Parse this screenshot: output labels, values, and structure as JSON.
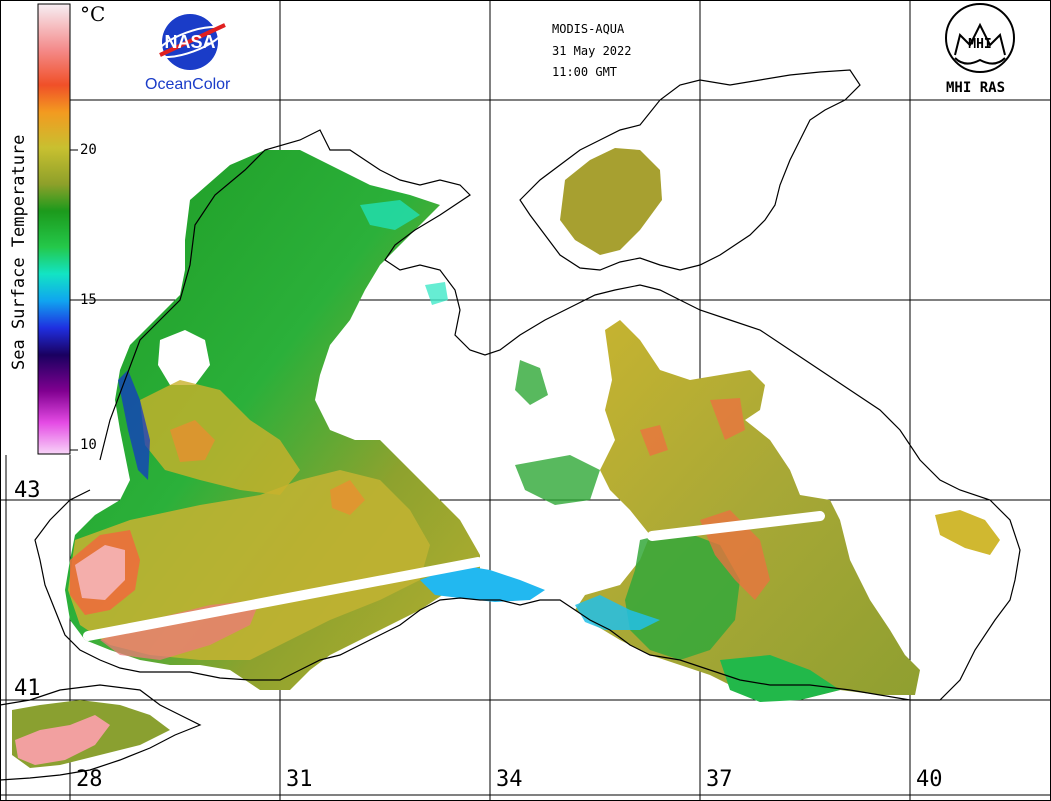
{
  "header": {
    "satellite": "MODIS-AQUA",
    "date": "31 May 2022",
    "time": "11:00 GMT"
  },
  "logos": {
    "nasa_logo_text": "NASA",
    "nasa_caption": "OceanColor",
    "institute_caption": "MHI RAS",
    "institute_logo_text": "MHI"
  },
  "colorbar": {
    "title": "Sea Surface Temperature",
    "unit": "°C",
    "ticks": [
      "20",
      "15",
      "10"
    ],
    "colors": [
      "#f4e4ee",
      "#f5a0a8",
      "#f05a3a",
      "#f79a20",
      "#c8c020",
      "#8aa82a",
      "#1f9a1f",
      "#22c84a",
      "#10e6c8",
      "#10a0f0",
      "#2030e0",
      "#200070",
      "#800080",
      "#e040e0",
      "#f4c8f4"
    ]
  },
  "axes": {
    "lat_labels": [
      "43",
      "41"
    ],
    "lon_labels": [
      "28",
      "31",
      "34",
      "37",
      "40"
    ]
  },
  "map": {
    "region": "Black Sea",
    "land_color": "#ffffff",
    "coast_color": "#000000",
    "grid_color": "#000000"
  }
}
